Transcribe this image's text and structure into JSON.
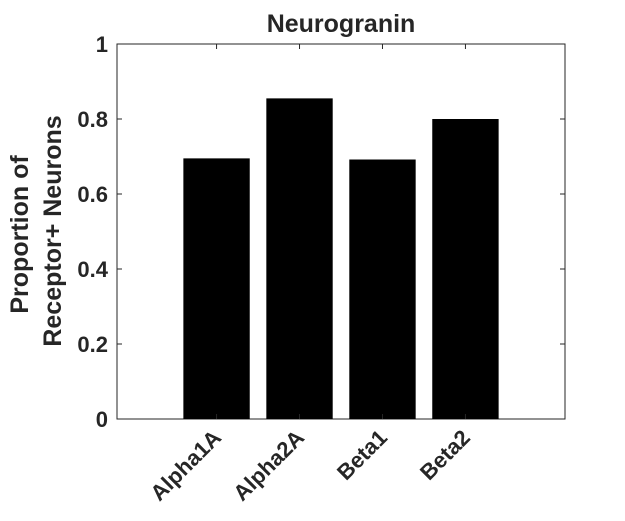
{
  "chart_data": {
    "type": "bar",
    "title": "Neurogranin",
    "xlabel": "",
    "ylabel": [
      "Proportion of",
      "Receptor+ Neurons"
    ],
    "categories": [
      "Alpha1A",
      "Alpha2A",
      "Beta1",
      "Beta2"
    ],
    "values": [
      0.695,
      0.855,
      0.692,
      0.8
    ],
    "ylim": [
      0,
      1
    ],
    "yticks": [
      0,
      0.2,
      0.4,
      0.6,
      0.8,
      1
    ],
    "ytick_labels": [
      "0",
      "0.2",
      "0.4",
      "0.6",
      "0.8",
      "1"
    ],
    "grid": false,
    "legend": "none",
    "bar_color": "#000000",
    "axis_color": "#262626"
  }
}
